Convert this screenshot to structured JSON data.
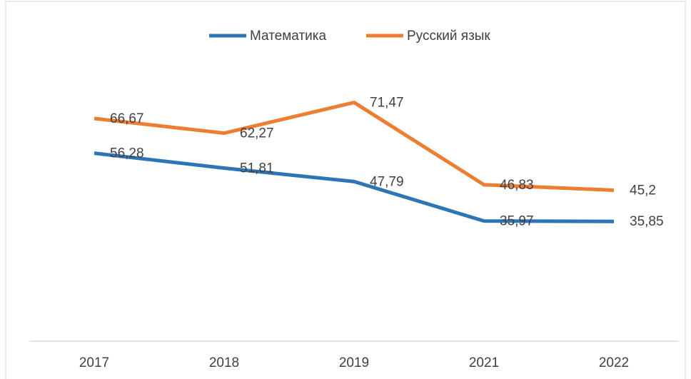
{
  "chart_data": {
    "type": "line",
    "categories": [
      "2017",
      "2018",
      "2019",
      "2021",
      "2022"
    ],
    "series": [
      {
        "name": "Математика",
        "color": "#2e75b6",
        "values": [
          56.28,
          51.81,
          47.79,
          35.97,
          35.85
        ],
        "value_labels": [
          "56,28",
          "51,81",
          "47,79",
          "35,97",
          "35,85"
        ]
      },
      {
        "name": "Русский язык",
        "color": "#ed7d31",
        "values": [
          66.67,
          62.27,
          71.47,
          46.83,
          45.2
        ],
        "value_labels": [
          "66,67",
          "62,27",
          "71,47",
          "46,83",
          "45,2"
        ]
      }
    ],
    "ylim": [
      0,
      100
    ],
    "legend": "top"
  }
}
